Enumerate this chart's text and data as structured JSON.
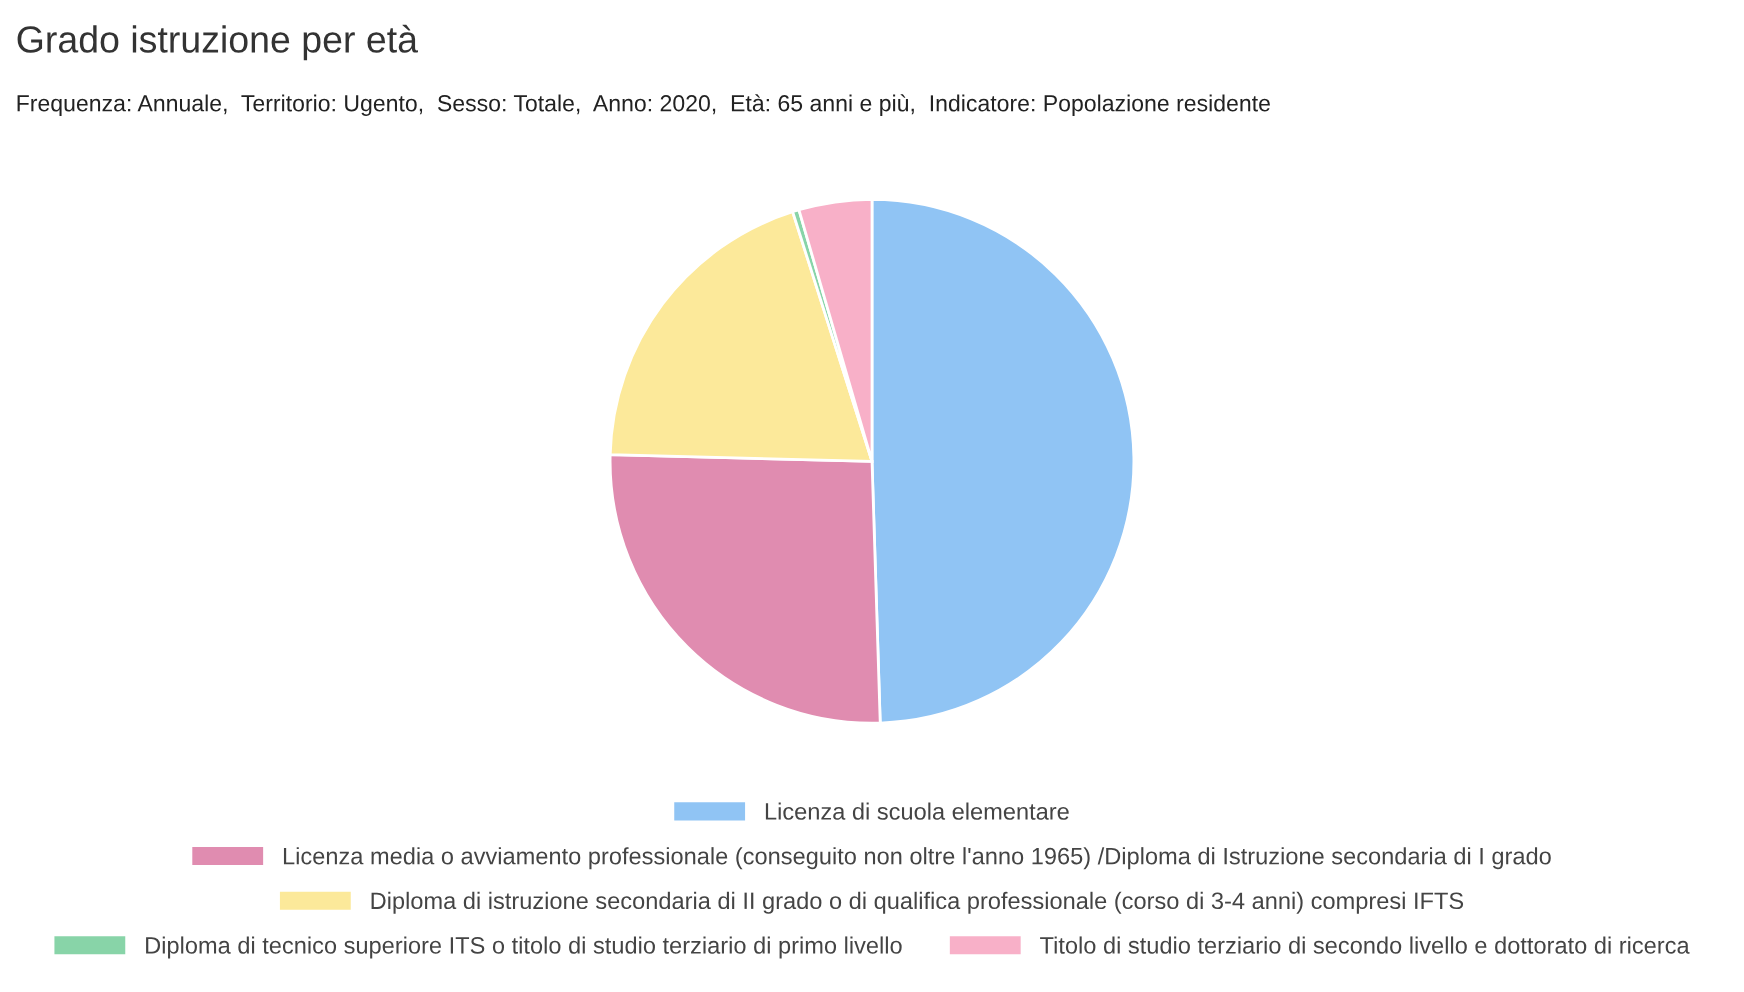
{
  "chart_data": {
    "type": "pie",
    "title": "Grado istruzione per età",
    "subtitle": "Frequenza: Annuale,  Territorio: Ugento,  Sesso: Totale,  Anno: 2020,  Età: 65 anni e più,  Indicatore: Popolazione residente",
    "categories": [
      "Licenza di scuola elementare",
      "Licenza media o avviamento professionale (conseguito non oltre l'anno 1965) /Diploma di Istruzione secondaria di I grado",
      "Diploma di istruzione secondaria di II grado o di qualifica professionale (corso di 3-4 anni) compresi IFTS",
      "Diploma di tecnico superiore ITS o titolo di studio terziario di primo livello",
      "Titolo di studio terziario di secondo livello e dottorato di ricerca"
    ],
    "values": [
      49.5,
      25.9,
      19.7,
      0.4,
      4.5
    ],
    "colors": [
      "#90c4f4",
      "#e08cb0",
      "#fce99a",
      "#88d4a8",
      "#f8b0c8"
    ],
    "legend": "bottom"
  }
}
